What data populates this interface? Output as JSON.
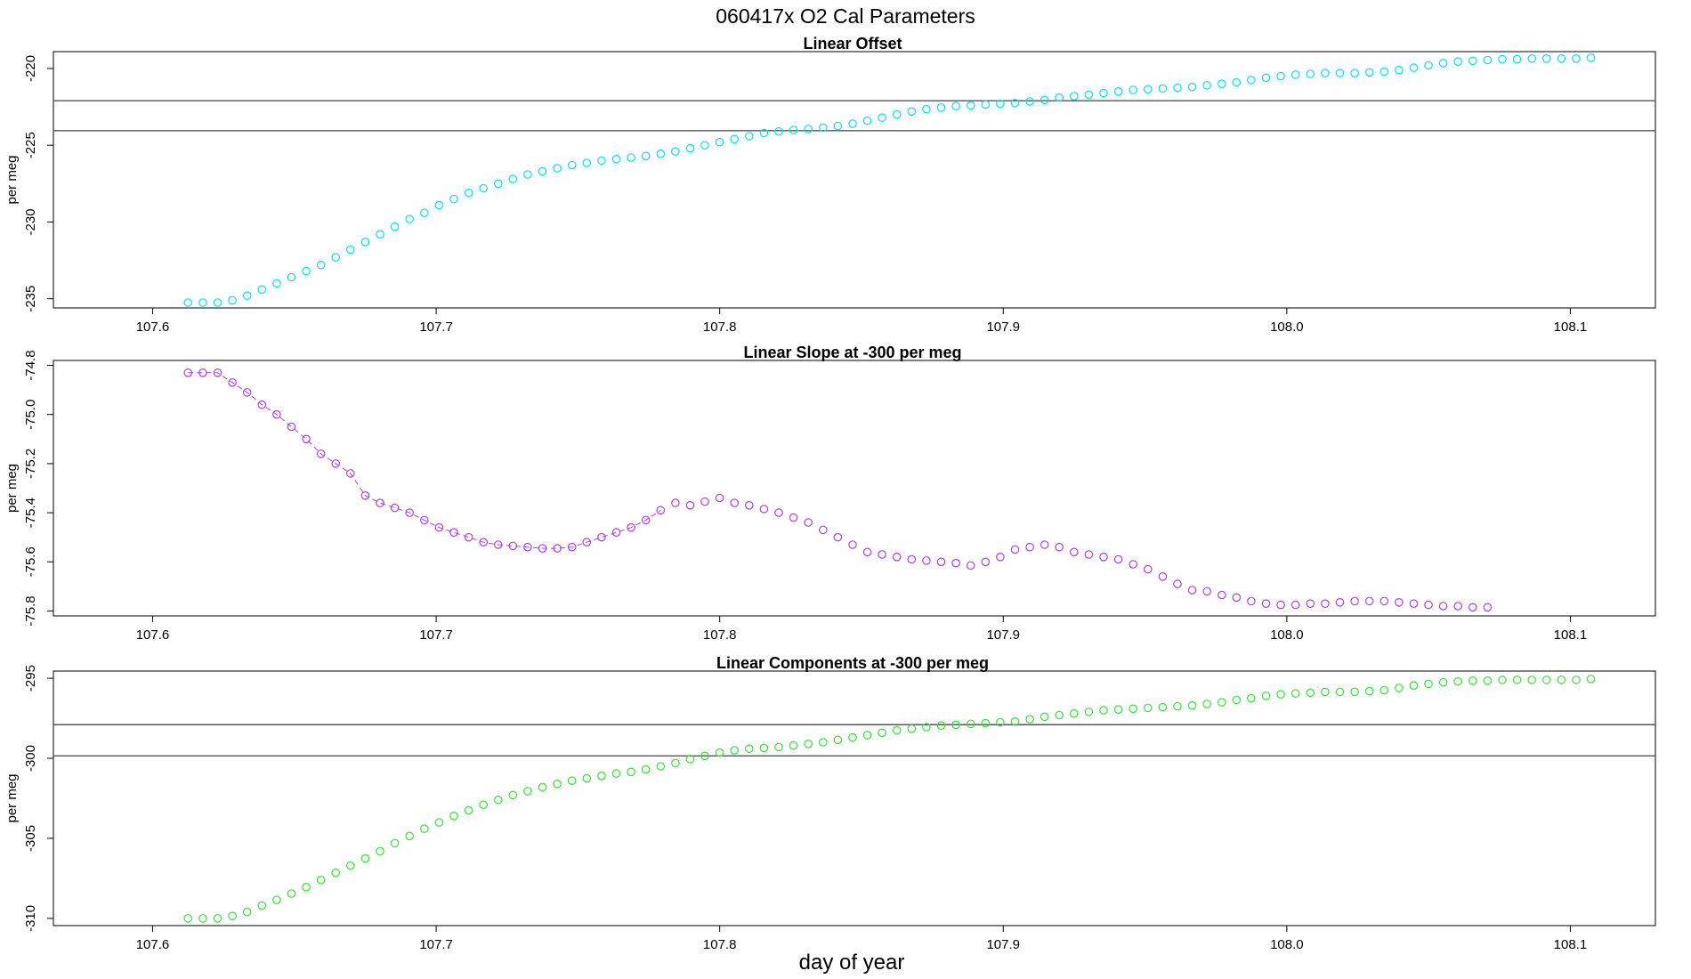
{
  "figure": {
    "title": "060417x   O2 Cal Parameters",
    "xlabel": "day of year"
  },
  "chart_data": [
    {
      "type": "scatter",
      "title": "Linear Offset",
      "ylabel": "per meg",
      "color": "#00e5ee",
      "xlim": [
        107.565,
        108.13
      ],
      "ylim": [
        -235.6,
        -218.9
      ],
      "xticks": [
        "107.6",
        "107.7",
        "107.8",
        "107.9",
        "108.0",
        "108.1"
      ],
      "yticks": [
        "-220",
        "-225",
        "-230",
        "-235"
      ],
      "hlines": [
        -222.1,
        -224.05
      ],
      "x_start": 107.6125,
      "x_step": 0.005208,
      "y": [
        -235.25,
        -235.25,
        -235.25,
        -235.1,
        -234.8,
        -234.4,
        -234.0,
        -233.6,
        -233.2,
        -232.8,
        -232.3,
        -231.8,
        -231.3,
        -230.8,
        -230.3,
        -229.8,
        -229.4,
        -228.9,
        -228.5,
        -228.1,
        -227.8,
        -227.5,
        -227.2,
        -226.9,
        -226.7,
        -226.5,
        -226.3,
        -226.15,
        -226.0,
        -225.9,
        -225.8,
        -225.7,
        -225.55,
        -225.4,
        -225.2,
        -225.0,
        -224.8,
        -224.6,
        -224.4,
        -224.2,
        -224.1,
        -224.0,
        -223.95,
        -223.85,
        -223.75,
        -223.6,
        -223.4,
        -223.2,
        -223.0,
        -222.8,
        -222.65,
        -222.55,
        -222.45,
        -222.4,
        -222.35,
        -222.3,
        -222.25,
        -222.15,
        -222.05,
        -221.9,
        -221.8,
        -221.7,
        -221.6,
        -221.5,
        -221.4,
        -221.35,
        -221.3,
        -221.25,
        -221.2,
        -221.1,
        -221.0,
        -220.9,
        -220.75,
        -220.6,
        -220.5,
        -220.4,
        -220.35,
        -220.3,
        -220.3,
        -220.3,
        -220.25,
        -220.2,
        -220.1,
        -219.95,
        -219.8,
        -219.65,
        -219.55,
        -219.5,
        -219.45,
        -219.4,
        -219.4,
        -219.35,
        -219.35,
        -219.35,
        -219.35,
        -219.3
      ]
    },
    {
      "type": "scatter",
      "title": "Linear Slope at -300 per meg",
      "ylabel": "per meg",
      "color": "#b03fe8",
      "xlim": [
        107.565,
        108.13
      ],
      "ylim": [
        -75.82,
        -74.78
      ],
      "xticks": [
        "107.6",
        "107.7",
        "107.8",
        "107.9",
        "108.0",
        "108.1"
      ],
      "yticks": [
        "-74.8",
        "-75.0",
        "-75.2",
        "-75.4",
        "-75.6",
        "-75.8"
      ],
      "hlines": [],
      "x_start": 107.6125,
      "x_step": 0.005208,
      "connected_range": [
        0,
        32
      ],
      "y": [
        -74.83,
        -74.83,
        -74.83,
        -74.87,
        -74.91,
        -74.96,
        -75.0,
        -75.05,
        -75.1,
        -75.16,
        -75.2,
        -75.24,
        -75.33,
        -75.36,
        -75.38,
        -75.4,
        -75.43,
        -75.46,
        -75.48,
        -75.5,
        -75.52,
        -75.53,
        -75.535,
        -75.54,
        -75.545,
        -75.545,
        -75.54,
        -75.52,
        -75.5,
        -75.48,
        -75.46,
        -75.43,
        -75.39,
        -75.36,
        -75.37,
        -75.355,
        -75.34,
        -75.36,
        -75.37,
        -75.385,
        -75.4,
        -75.42,
        -75.44,
        -75.47,
        -75.5,
        -75.53,
        -75.56,
        -75.57,
        -75.58,
        -75.59,
        -75.595,
        -75.6,
        -75.605,
        -75.615,
        -75.6,
        -75.58,
        -75.55,
        -75.54,
        -75.53,
        -75.54,
        -75.56,
        -75.57,
        -75.58,
        -75.59,
        -75.61,
        -75.63,
        -75.66,
        -75.69,
        -75.715,
        -75.72,
        -75.735,
        -75.745,
        -75.76,
        -75.77,
        -75.775,
        -75.775,
        -75.77,
        -75.77,
        -75.765,
        -75.76,
        -75.76,
        -75.76,
        -75.765,
        -75.77,
        -75.775,
        -75.78,
        -75.78,
        -75.785,
        -75.785
      ]
    },
    {
      "type": "scatter",
      "title": "Linear Components at -300 per meg",
      "ylabel": "per meg",
      "color": "#2ee82e",
      "xlim": [
        107.565,
        108.13
      ],
      "ylim": [
        -310.45,
        -294.55
      ],
      "xticks": [
        "107.6",
        "107.7",
        "107.8",
        "107.9",
        "108.0",
        "108.1"
      ],
      "yticks": [
        "-295",
        "-300",
        "-305",
        "-310"
      ],
      "hlines": [
        -297.9,
        -299.85
      ],
      "x_start": 107.6125,
      "x_step": 0.005208,
      "y": [
        -310.0,
        -310.0,
        -310.0,
        -309.85,
        -309.6,
        -309.2,
        -308.85,
        -308.45,
        -308.05,
        -307.6,
        -307.15,
        -306.7,
        -306.25,
        -305.8,
        -305.3,
        -304.85,
        -304.4,
        -304.0,
        -303.6,
        -303.25,
        -302.9,
        -302.6,
        -302.3,
        -302.05,
        -301.8,
        -301.6,
        -301.4,
        -301.25,
        -301.1,
        -300.95,
        -300.85,
        -300.7,
        -300.5,
        -300.3,
        -300.05,
        -299.85,
        -299.65,
        -299.5,
        -299.4,
        -299.35,
        -299.3,
        -299.2,
        -299.1,
        -299.0,
        -298.85,
        -298.7,
        -298.55,
        -298.4,
        -298.25,
        -298.15,
        -298.05,
        -297.95,
        -297.9,
        -297.85,
        -297.8,
        -297.75,
        -297.7,
        -297.55,
        -297.4,
        -297.3,
        -297.2,
        -297.1,
        -297.0,
        -296.95,
        -296.9,
        -296.85,
        -296.8,
        -296.75,
        -296.7,
        -296.6,
        -296.5,
        -296.35,
        -296.25,
        -296.1,
        -296.0,
        -295.95,
        -295.9,
        -295.85,
        -295.85,
        -295.85,
        -295.8,
        -295.75,
        -295.6,
        -295.45,
        -295.35,
        -295.25,
        -295.2,
        -295.15,
        -295.15,
        -295.1,
        -295.1,
        -295.1,
        -295.1,
        -295.1,
        -295.1,
        -295.05
      ]
    }
  ]
}
